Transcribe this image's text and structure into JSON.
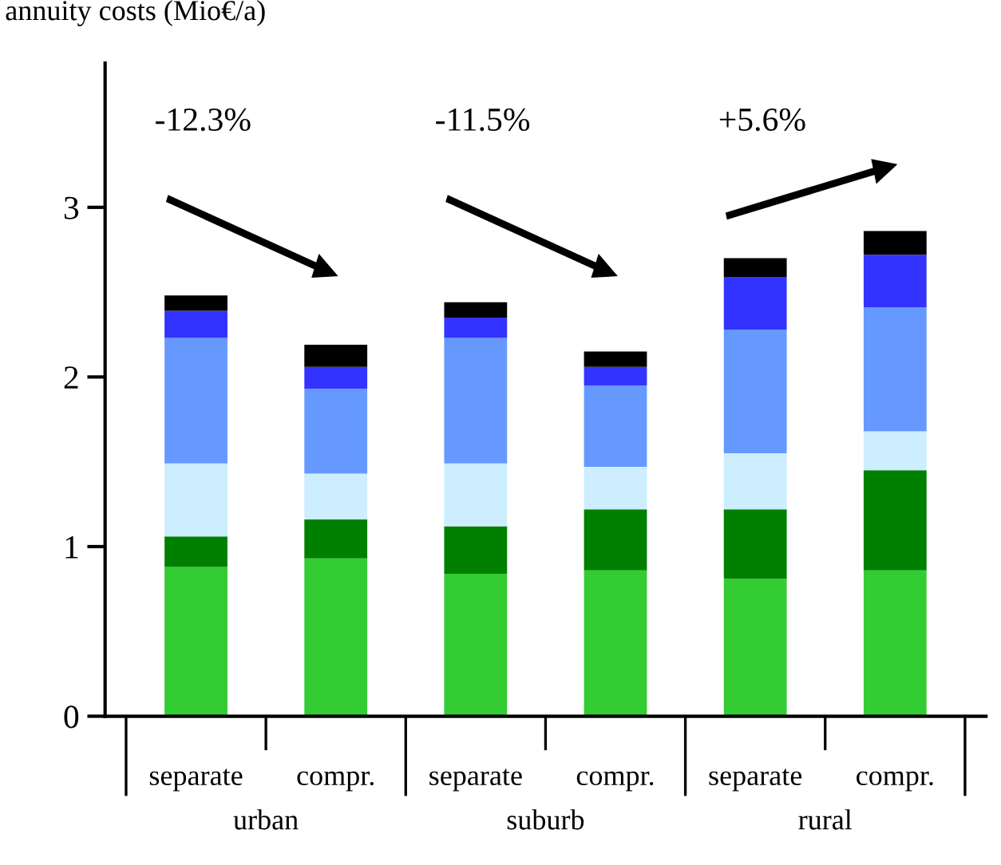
{
  "chart_data": {
    "type": "bar",
    "stacked": true,
    "ylabel": "annuity costs (Mio€/a)",
    "categories": [
      "separate",
      "compr.",
      "separate",
      "compr.",
      "separate",
      "compr."
    ],
    "series": [
      {
        "color": "#33cc33",
        "values": [
          0.88,
          0.93,
          0.84,
          0.86,
          0.81,
          0.86
        ]
      },
      {
        "color": "#008000",
        "values": [
          0.18,
          0.23,
          0.28,
          0.36,
          0.41,
          0.59
        ]
      },
      {
        "color": "#cceeff",
        "values": [
          0.43,
          0.27,
          0.37,
          0.25,
          0.33,
          0.23
        ]
      },
      {
        "color": "#6699ff",
        "values": [
          0.74,
          0.5,
          0.74,
          0.48,
          0.73,
          0.73
        ]
      },
      {
        "color": "#3333ff",
        "values": [
          0.16,
          0.13,
          0.12,
          0.11,
          0.31,
          0.31
        ]
      },
      {
        "color": "#000000",
        "values": [
          0.09,
          0.13,
          0.09,
          0.09,
          0.11,
          0.14
        ]
      }
    ],
    "ylim": [
      0,
      3.85
    ],
    "yticks": [
      0,
      1,
      2,
      3
    ],
    "grid": false,
    "legend": false,
    "annotations": [
      "urban",
      "suburb",
      "rural",
      "-12.3%",
      "-11.5%",
      "+5.6%"
    ]
  }
}
